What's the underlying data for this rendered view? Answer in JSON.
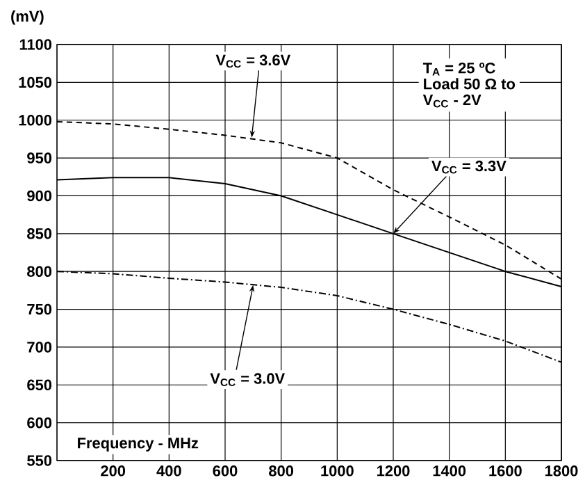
{
  "chart_data": {
    "type": "line",
    "xlabel": "Frequency -  MHz",
    "ylabel": "(mV)",
    "x": [
      0,
      200,
      400,
      600,
      800,
      1000,
      1200,
      1400,
      1600,
      1800
    ],
    "series": [
      {
        "name": "V$_{CC}$ = 3.6V",
        "color": "#000000",
        "line_style": "dashed",
        "values": [
          998,
          995,
          988,
          980,
          970,
          950,
          908,
          872,
          835,
          790
        ]
      },
      {
        "name": "V$_{CC}$ = 3.3V",
        "color": "#000000",
        "line_style": "solid",
        "values": [
          921,
          924,
          924,
          916,
          900,
          875,
          850,
          825,
          800,
          780
        ]
      },
      {
        "name": "V$_{CC}$ = 3.0V",
        "color": "#000000",
        "line_style": "dashdot",
        "values": [
          800,
          797,
          791,
          786,
          779,
          768,
          750,
          730,
          708,
          680
        ]
      }
    ],
    "annotations": [
      "T$_{A}$ = 25 ºC",
      "Load 50 Ω to",
      "V$_{CC}$ - 2V"
    ],
    "xlim": [
      0,
      1800
    ],
    "ylim": [
      550,
      1100
    ],
    "xticks": [
      200,
      400,
      600,
      800,
      1000,
      1200,
      1400,
      1600,
      1800
    ],
    "yticks": [
      550,
      600,
      650,
      700,
      750,
      800,
      850,
      900,
      950,
      1000,
      1050,
      1100
    ],
    "grid": true,
    "legend": false,
    "marker": "none"
  }
}
